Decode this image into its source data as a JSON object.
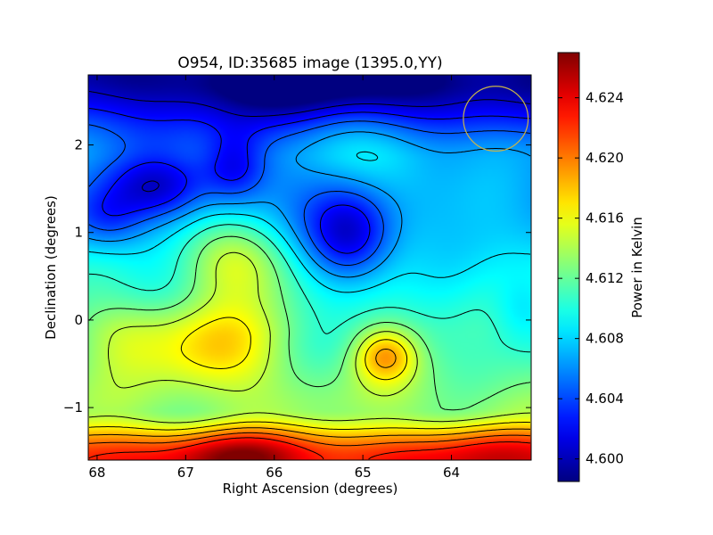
{
  "chart_data": {
    "type": "heatmap",
    "title": "O954, ID:35685 image (1395.0,YY)",
    "xlabel": "Right Ascension (degrees)",
    "ylabel": "Declination (degrees)",
    "xlim": [
      68.1,
      63.1
    ],
    "ylim": [
      -1.6,
      2.8
    ],
    "x_ticks": [
      68,
      67,
      66,
      65,
      64
    ],
    "x_tick_labels": [
      "68",
      "67",
      "66",
      "65",
      "64"
    ],
    "y_ticks": [
      2,
      1,
      0,
      -1
    ],
    "y_tick_labels": [
      "2",
      "1",
      "0",
      "−1"
    ],
    "colorbar": {
      "label": "Power in Kelvin",
      "range": [
        4.5985,
        4.627
      ],
      "ticks": [
        4.6,
        4.604,
        4.608,
        4.612,
        4.616,
        4.62,
        4.624
      ],
      "tick_labels": [
        "4.600",
        "4.604",
        "4.608",
        "4.612",
        "4.616",
        "4.620",
        "4.624"
      ]
    },
    "colormap": "jet",
    "contours": true,
    "beam_marker": {
      "ra": 63.5,
      "dec": 2.3,
      "radius_deg": 0.37,
      "color": "#c8b44a"
    },
    "field": {
      "background": 4.609,
      "gradient": [
        {
          "dec": -1.6,
          "value": 4.623
        },
        {
          "dec": -1.0,
          "value": 4.613
        },
        {
          "dec": -0.2,
          "value": 4.611
        },
        {
          "dec": 1.8,
          "value": 4.606
        },
        {
          "dec": 2.8,
          "value": 4.6
        }
      ],
      "features": [
        {
          "ra": 66.45,
          "dec": -1.55,
          "amp": 0.004,
          "sra": 0.45,
          "sdec": 0.22
        },
        {
          "ra": 63.6,
          "dec": -1.45,
          "amp": 0.002,
          "sra": 0.4,
          "sdec": 0.3
        },
        {
          "ra": 66.45,
          "dec": 0.7,
          "amp": 0.006,
          "sra": 0.45,
          "sdec": 0.35
        },
        {
          "ra": 66.65,
          "dec": -0.3,
          "amp": 0.006,
          "sra": 0.55,
          "sdec": 0.35
        },
        {
          "ra": 64.75,
          "dec": -0.4,
          "amp": 0.007,
          "sra": 0.25,
          "sdec": 0.22
        },
        {
          "ra": 67.7,
          "dec": -0.2,
          "amp": 0.003,
          "sra": 0.4,
          "sdec": 0.3
        },
        {
          "ra": 65.15,
          "dec": 0.95,
          "amp": -0.008,
          "sra": 0.35,
          "sdec": 0.38
        },
        {
          "ra": 67.3,
          "dec": 1.5,
          "amp": -0.005,
          "sra": 0.4,
          "sdec": 0.25
        },
        {
          "ra": 66.45,
          "dec": 1.75,
          "amp": -0.005,
          "sra": 0.25,
          "sdec": 0.3
        },
        {
          "ra": 67.9,
          "dec": 1.15,
          "amp": -0.004,
          "sra": 0.3,
          "sdec": 0.25
        },
        {
          "ra": 64.75,
          "dec": 1.8,
          "amp": 0.003,
          "sra": 0.6,
          "sdec": 0.35
        },
        {
          "ra": 63.2,
          "dec": 0.1,
          "amp": -0.003,
          "sra": 0.25,
          "sdec": 0.3
        },
        {
          "ra": 65.5,
          "dec": 2.7,
          "amp": -0.004,
          "sra": 1.2,
          "sdec": 0.25
        }
      ],
      "contour_levels": [
        4.6005,
        4.6025,
        4.6045,
        4.6065,
        4.6085,
        4.6105,
        4.6125,
        4.6145,
        4.6165,
        4.6185,
        4.6205,
        4.6225
      ]
    }
  }
}
